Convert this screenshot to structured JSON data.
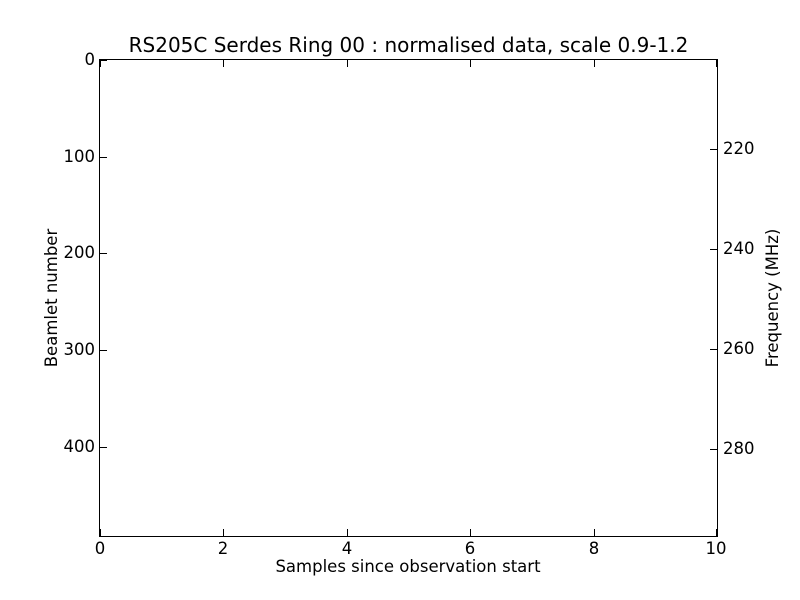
{
  "chart_data": {
    "type": "heatmap",
    "title": "RS205C Serdes Ring 00 : normalised data, scale 0.9-1.2",
    "xlabel": "Samples since observation start",
    "ylabel_left": "Beamlet number",
    "ylabel_right": "Frequency (MHz)",
    "xlim": [
      0,
      10
    ],
    "ylim_left": [
      0,
      492
    ],
    "y_left_inverted": true,
    "ylim_right": [
      202.3,
      297.3
    ],
    "y_right_increases_downward": true,
    "xticks": [
      0,
      2,
      4,
      6,
      8,
      10
    ],
    "yticks_left": [
      0,
      100,
      200,
      300,
      400
    ],
    "yticks_right": [
      220,
      240,
      260,
      280
    ],
    "values": [],
    "plot_area_content": "blank",
    "grid": false,
    "legend": false,
    "colors": {
      "foreground": "#000000",
      "background": "#ffffff"
    }
  }
}
